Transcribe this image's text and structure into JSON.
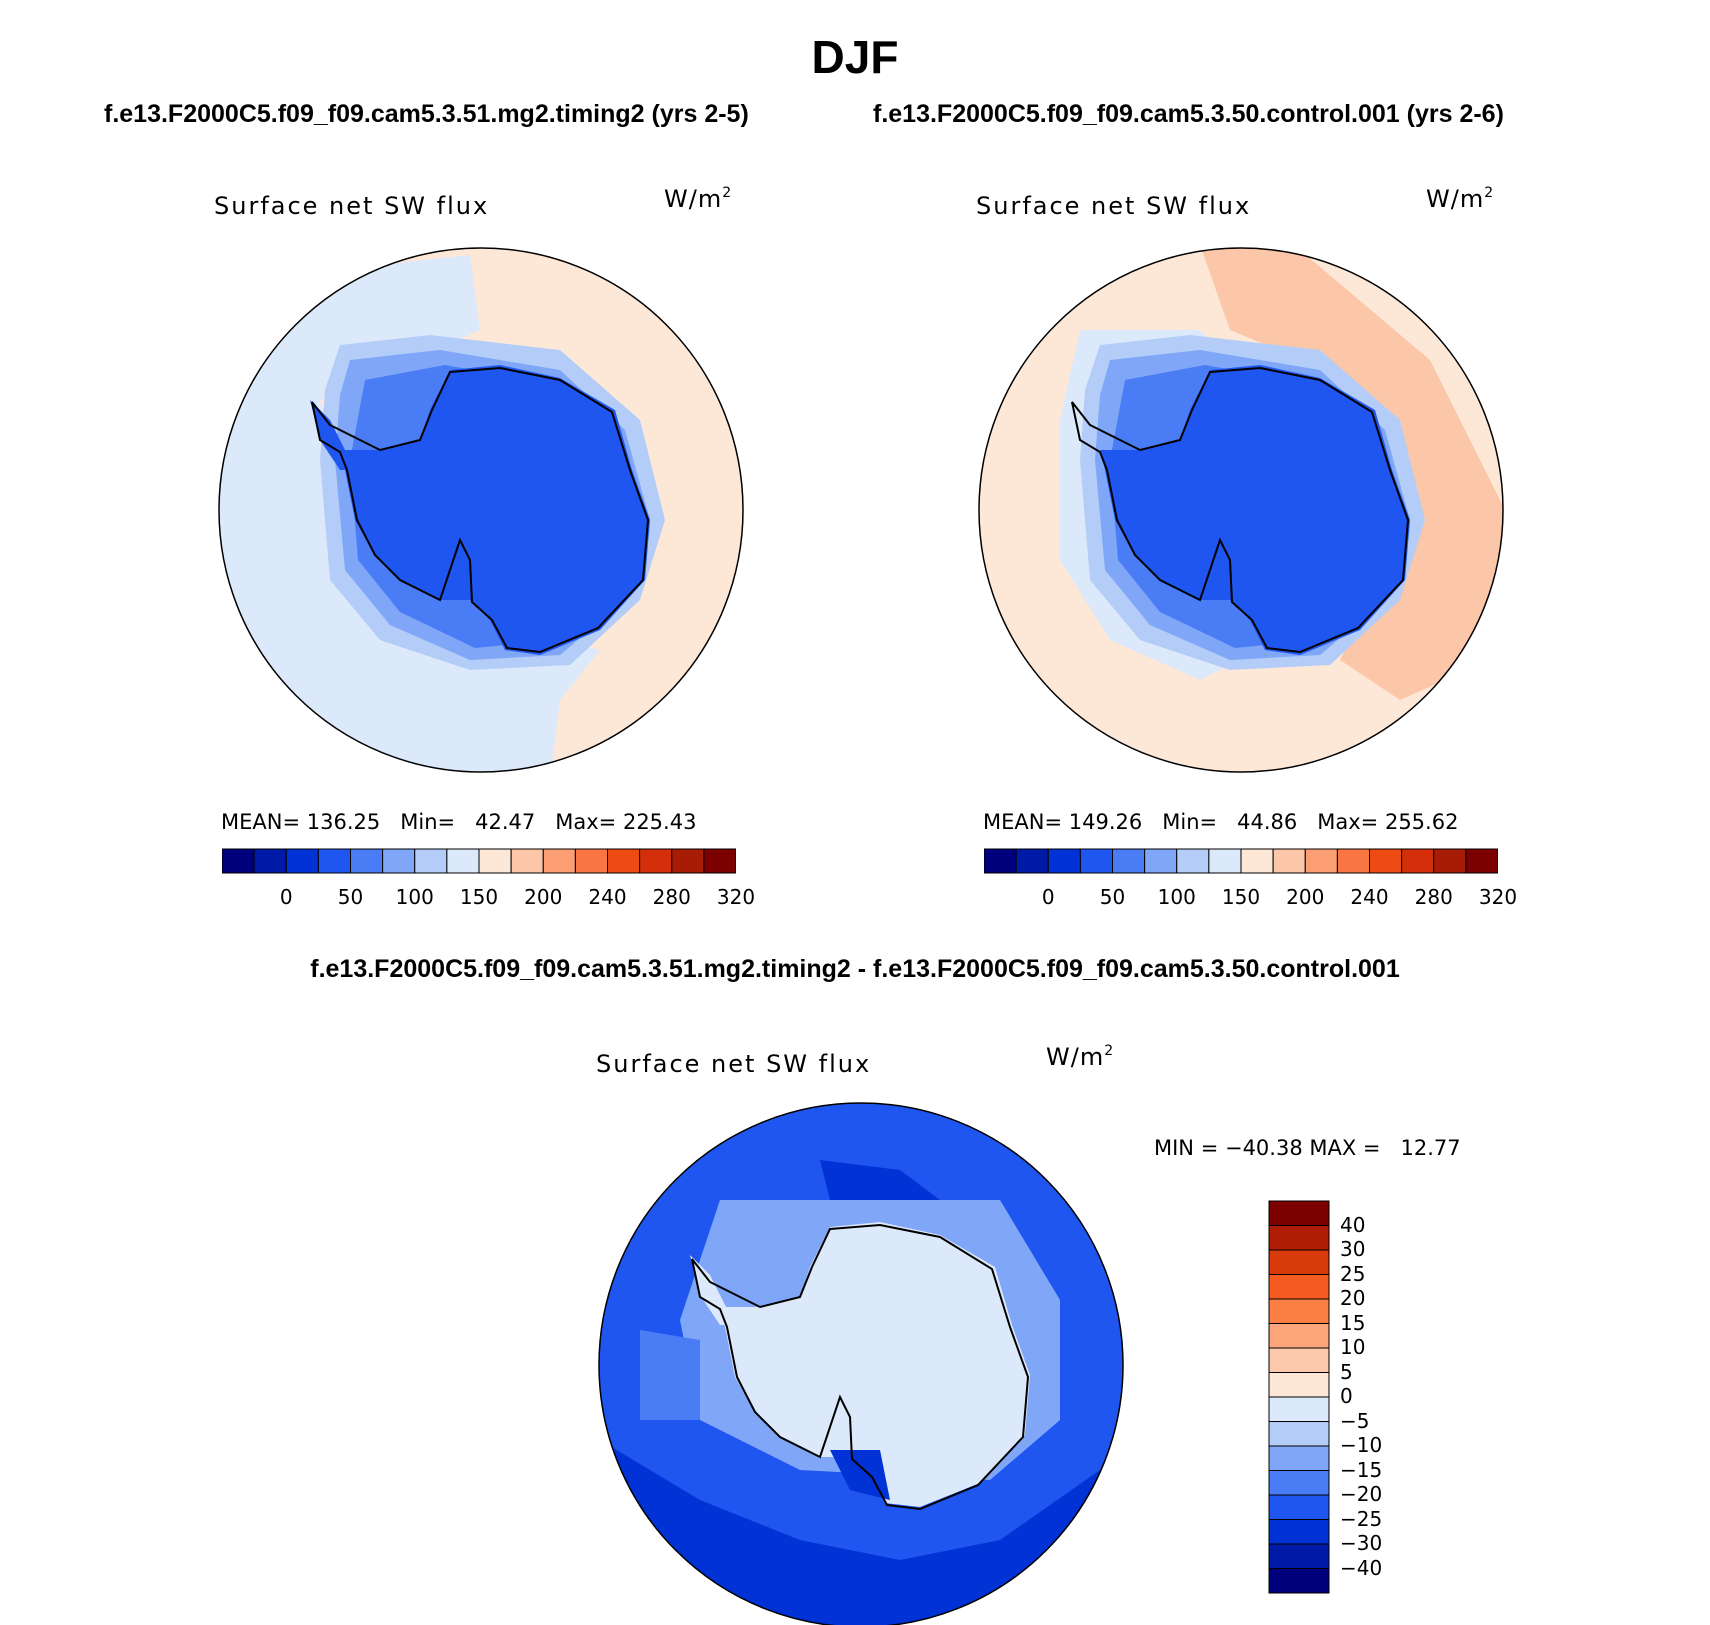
{
  "title": "DJF",
  "case_titles": {
    "left": "f.e13.F2000C5.f09_f09.cam5.3.51.mg2.timing2 (yrs 2-5)",
    "right": "f.e13.F2000C5.f09_f09.cam5.3.50.control.001 (yrs 2-6)"
  },
  "diff_title": "f.e13.F2000C5.f09_f09.cam5.3.51.mg2.timing2 - f.e13.F2000C5.f09_f09.cam5.3.50.control.001",
  "panels": [
    {
      "variable": "Surface net SW flux",
      "units_base": "W/m",
      "units_exp": "2",
      "stats": "MEAN= 136.25   Min=   42.47   Max= 225.43"
    },
    {
      "variable": "Surface net SW flux",
      "units_base": "W/m",
      "units_exp": "2",
      "stats": "MEAN= 149.26   Min=   44.86   Max= 255.62"
    },
    {
      "variable": "Surface net SW flux",
      "units_base": "W/m",
      "units_exp": "2",
      "stats": "MIN = −40.38 MAX =   12.77"
    }
  ],
  "colorbar_main": {
    "labels": [
      "0",
      "50",
      "100",
      "150",
      "200",
      "240",
      "280",
      "320"
    ],
    "colors": [
      "#00007d",
      "#001aa8",
      "#0032d6",
      "#1f56f0",
      "#4a7df5",
      "#7fa6f7",
      "#b4cdf8",
      "#dbe9fa",
      "#fde8d8",
      "#fcc6a8",
      "#fb9e74",
      "#f97541",
      "#ee4a14",
      "#d42f0a",
      "#a81b05",
      "#7d0000"
    ]
  },
  "colorbar_diff": {
    "labels": [
      "40",
      "30",
      "25",
      "20",
      "15",
      "10",
      "5",
      "0",
      "−5",
      "−10",
      "−15",
      "−20",
      "−25",
      "−30",
      "−40"
    ],
    "colors": [
      "#7d0000",
      "#b01d05",
      "#d93a0c",
      "#f55a20",
      "#fb7f45",
      "#fca47a",
      "#fdc9ad",
      "#fde8d8",
      "#dbe9fa",
      "#b4cdf8",
      "#7fa6f7",
      "#4a7df5",
      "#1f56f0",
      "#0032d6",
      "#001aa8",
      "#00007d"
    ]
  },
  "map_colors": {
    "ocean_blue": "#dbe9fa",
    "ocean_peach": "#fde8d8",
    "peach_dark": "#fcc6a8",
    "shelf1": "#b4cdf8",
    "shelf2": "#7fa6f7",
    "shelf3": "#4a7df5",
    "ice": "#1f56f0",
    "diff_bg": "#1f56f0",
    "diff_dark": "#0032d6",
    "diff_mid": "#4a7df5",
    "diff_light": "#7fa6f7",
    "diff_land": "#dbe9fa"
  }
}
